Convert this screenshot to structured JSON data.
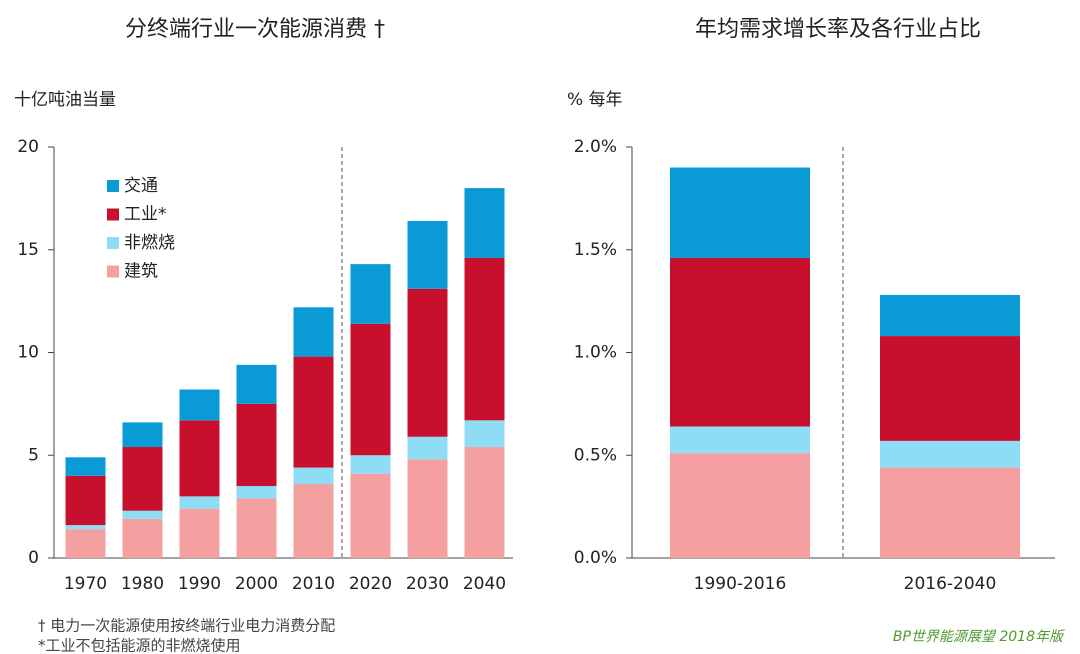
{
  "chart_data": [
    {
      "type": "bar",
      "stacked": true,
      "title": "分终端行业一次能源消费 †",
      "ylabel": "十亿吨油当量",
      "categories": [
        "1970",
        "1980",
        "1990",
        "2000",
        "2010",
        "2020",
        "2030",
        "2040"
      ],
      "series": [
        {
          "name": "建筑",
          "color": "#f4a0a0",
          "values": [
            1.4,
            1.9,
            2.4,
            2.9,
            3.6,
            4.1,
            4.8,
            5.4
          ]
        },
        {
          "name": "非燃烧",
          "color": "#8fdcf5",
          "values": [
            0.2,
            0.4,
            0.6,
            0.6,
            0.8,
            0.9,
            1.1,
            1.3
          ]
        },
        {
          "name": "工业*",
          "color": "#c8102e",
          "values": [
            2.4,
            3.1,
            3.7,
            4.0,
            5.4,
            6.4,
            7.2,
            7.9
          ]
        },
        {
          "name": "交通",
          "color": "#0a9ad6",
          "values": [
            0.9,
            1.2,
            1.5,
            1.9,
            2.4,
            2.9,
            3.3,
            3.4
          ]
        }
      ],
      "ylim": [
        0,
        20
      ],
      "yticks": [
        0,
        5,
        10,
        15,
        20
      ],
      "legend": "upper left"
    },
    {
      "type": "bar",
      "stacked": true,
      "title": "年均需求增长率及各行业占比",
      "ylabel": "% 每年",
      "categories": [
        "1990-2016",
        "2016-2040"
      ],
      "series": [
        {
          "color": "#f4a0a0",
          "values": [
            0.51,
            0.44
          ]
        },
        {
          "color": "#8fdcf5",
          "values": [
            0.13,
            0.13
          ]
        },
        {
          "color": "#c8102e",
          "values": [
            0.82,
            0.51
          ]
        },
        {
          "color": "#0a9ad6",
          "values": [
            0.44,
            0.2
          ]
        }
      ],
      "ylim": [
        0,
        2.0
      ],
      "yticks": [
        {
          "value": 0,
          "label": "0.0%"
        },
        {
          "value": 0.5,
          "label": "0.5%"
        },
        {
          "value": 1.0,
          "label": "1.0%"
        },
        {
          "value": 1.5,
          "label": "1.5%"
        },
        {
          "value": 2.0,
          "label": "2.0%"
        }
      ]
    }
  ],
  "footnotes": [
    "† 电力一次能源使用按终端行业电力消费分配",
    "*工业不包括能源的非燃烧使用"
  ],
  "source": "BP世界能源展望 2018年版"
}
